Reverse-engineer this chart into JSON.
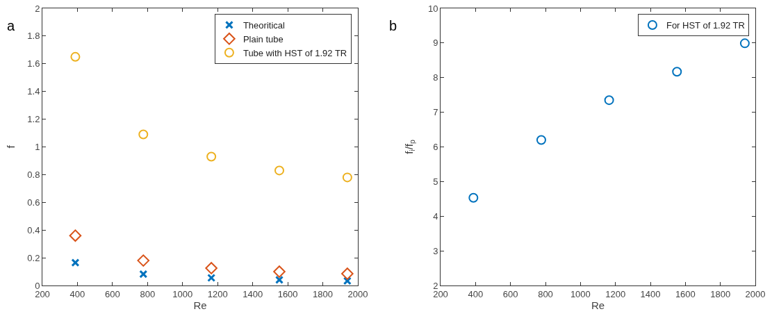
{
  "chart_data": [
    {
      "type": "scatter",
      "xlabel": "Re",
      "ylabel": "f",
      "annotations": [
        "a"
      ],
      "x": [
        388,
        776,
        1164,
        1552,
        1940
      ],
      "xlim": [
        200,
        2000
      ],
      "xticks": [
        200,
        400,
        600,
        800,
        1000,
        1200,
        1400,
        1600,
        1800,
        2000
      ],
      "ylim": [
        0,
        2
      ],
      "yticks": [
        0,
        0.2,
        0.4,
        0.6,
        0.8,
        1,
        1.2,
        1.4,
        1.6,
        1.8,
        2
      ],
      "grid": false,
      "legend": "top right",
      "series": [
        {
          "name": "Theoritical",
          "color": "#0072bd",
          "marker": "cross",
          "values": [
            0.165,
            0.082,
            0.055,
            0.041,
            0.033
          ]
        },
        {
          "name": "Plain tube",
          "color": "#d95319",
          "marker": "diamond",
          "values": [
            0.36,
            0.18,
            0.125,
            0.1,
            0.085
          ]
        },
        {
          "name": "Tube with HST of 1.92 TR",
          "color": "#edb120",
          "marker": "circle",
          "values": [
            1.65,
            1.09,
            0.93,
            0.83,
            0.78
          ]
        }
      ]
    },
    {
      "type": "scatter",
      "xlabel": "Re",
      "ylabel": "f$_{i}$/f$_{p}$",
      "annotations": [
        "b"
      ],
      "x": [
        388,
        776,
        1164,
        1552,
        1940
      ],
      "xlim": [
        200,
        2000
      ],
      "xticks": [
        200,
        400,
        600,
        800,
        1000,
        1200,
        1400,
        1600,
        1800,
        2000
      ],
      "ylim": [
        2,
        10
      ],
      "yticks": [
        2,
        3,
        4,
        5,
        6,
        7,
        8,
        9,
        10
      ],
      "grid": false,
      "legend": "top right",
      "series": [
        {
          "name": "For HST of 1.92 TR",
          "color": "#0072bd",
          "marker": "circle",
          "values": [
            4.53,
            6.2,
            7.35,
            8.17,
            8.99
          ]
        }
      ]
    }
  ]
}
